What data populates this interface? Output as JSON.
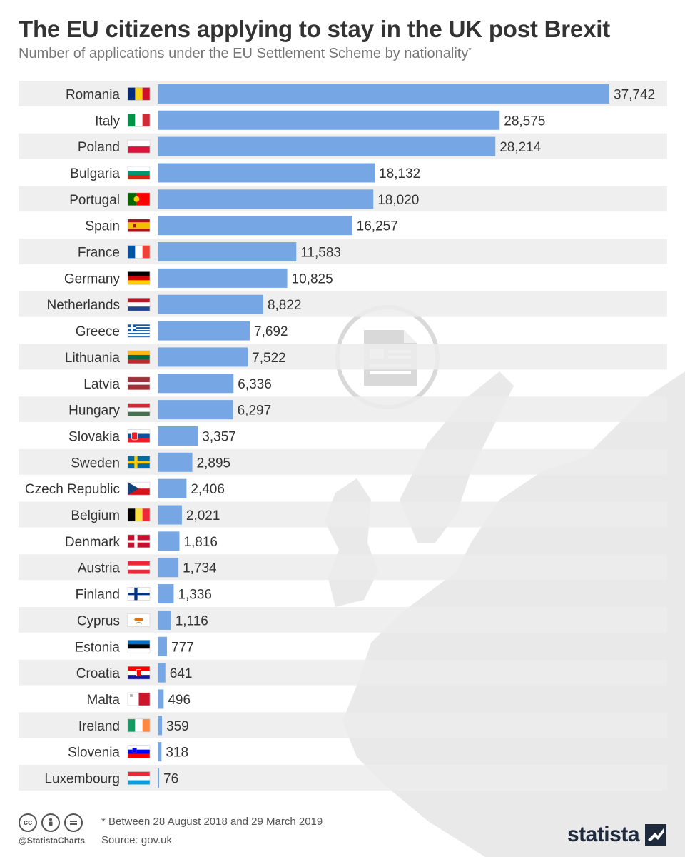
{
  "header": {
    "title": "The EU citizens applying to stay in the UK post Brexit",
    "subtitle": "Number of applications under the EU Settlement Scheme by nationality",
    "subtitle_mark": "*"
  },
  "footer": {
    "handle": "@StatistaCharts",
    "footnote": "* Between 28 August 2018 and 29 March 2019",
    "source": "Source: gov.uk",
    "brand": "statista"
  },
  "colors": {
    "bar": "#76a6e3",
    "band": "#ececec",
    "map": "#e8e8e8",
    "label": "#333333"
  },
  "icons": {
    "watermark": "document-circle-icon",
    "license": [
      "cc-icon",
      "person-icon",
      "equals-icon"
    ],
    "brand": "statista-logo-icon"
  },
  "chart_data": {
    "type": "bar",
    "orientation": "horizontal",
    "title": "The EU citizens applying to stay in the UK post Brexit",
    "subtitle": "Number of applications under the EU Settlement Scheme by nationality*",
    "xlim": [
      0,
      37742
    ],
    "grid": false,
    "legend": "none",
    "categories": [
      "Romania",
      "Italy",
      "Poland",
      "Bulgaria",
      "Portugal",
      "Spain",
      "France",
      "Germany",
      "Netherlands",
      "Greece",
      "Lithuania",
      "Latvia",
      "Hungary",
      "Slovakia",
      "Sweden",
      "Czech Republic",
      "Belgium",
      "Denmark",
      "Austria",
      "Finland",
      "Cyprus",
      "Estonia",
      "Croatia",
      "Malta",
      "Ireland",
      "Slovenia",
      "Luxembourg"
    ],
    "values": [
      37742,
      28575,
      28214,
      18132,
      18020,
      16257,
      11583,
      10825,
      8822,
      7692,
      7522,
      6336,
      6297,
      3357,
      2895,
      2406,
      2021,
      1816,
      1734,
      1336,
      1116,
      777,
      641,
      496,
      359,
      318,
      76
    ],
    "value_labels": [
      "37,742",
      "28,575",
      "28,214",
      "18,132",
      "18,020",
      "16,257",
      "11,583",
      "10,825",
      "8,822",
      "7,692",
      "7,522",
      "6,336",
      "6,297",
      "3,357",
      "2,895",
      "2,406",
      "2,021",
      "1,816",
      "1,734",
      "1,336",
      "1,116",
      "777",
      "641",
      "496",
      "359",
      "318",
      "76"
    ],
    "flags": [
      "RO",
      "IT",
      "PL",
      "BG",
      "PT",
      "ES",
      "FR",
      "DE",
      "NL",
      "GR",
      "LT",
      "LV",
      "HU",
      "SK",
      "SE",
      "CZ",
      "BE",
      "DK",
      "AT",
      "FI",
      "CY",
      "EE",
      "HR",
      "MT",
      "IE",
      "SI",
      "LU"
    ]
  }
}
